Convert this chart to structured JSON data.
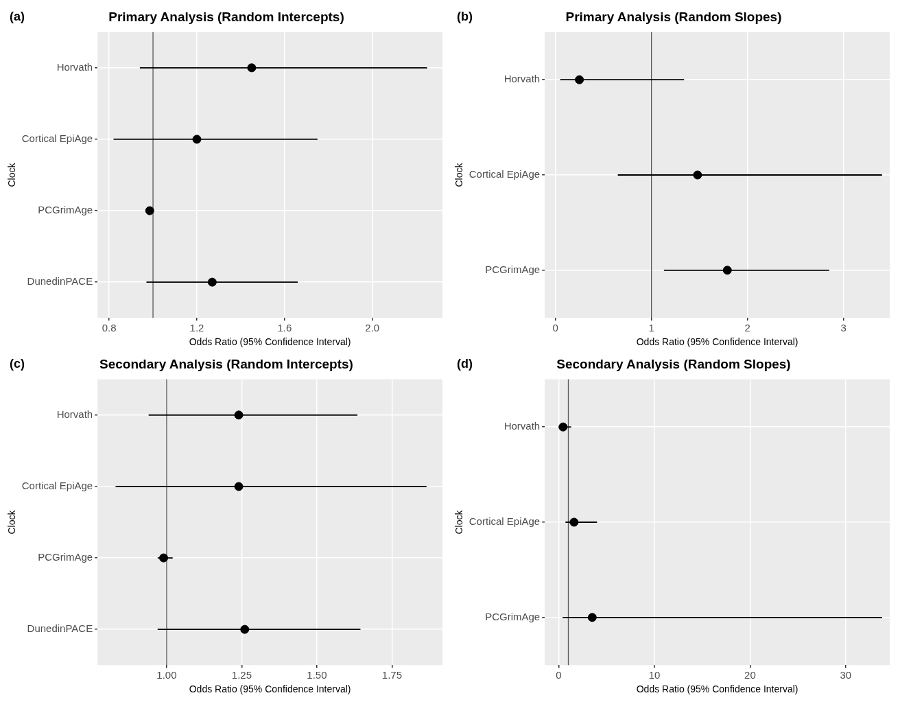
{
  "chart_data": [
    {
      "type": "scatter",
      "orientation": "horizontal",
      "title": "Primary Analysis (Random Intercepts)",
      "xlabel": "Odds Ratio (95% Confidence Interval)",
      "ylabel": "Clock",
      "annotations": [
        "(a)"
      ],
      "categories": [
        "Horvath",
        "Cortical EpiAge",
        "PCGrimAge",
        "DunedinPACE"
      ],
      "values": [
        1.45,
        1.2,
        0.985,
        1.27
      ],
      "errors": [
        [
          0.94,
          2.25
        ],
        [
          0.82,
          1.75
        ],
        [
          0.97,
          1.0
        ],
        [
          0.97,
          1.66
        ]
      ],
      "color": "#000000",
      "marker": "circle",
      "xlim": [
        0.747,
        2.32
      ],
      "xticks": [
        {
          "value": 0.8,
          "label": "0.8"
        },
        {
          "value": 1.2,
          "label": "1.2"
        },
        {
          "value": 1.6,
          "label": "1.6"
        },
        {
          "value": 2.0,
          "label": "2.0"
        }
      ],
      "grid": true,
      "ref_lines": [
        {
          "axis": "x",
          "value": 1,
          "color": "#555555"
        }
      ]
    },
    {
      "type": "scatter",
      "orientation": "horizontal",
      "title": "Primary Analysis (Random Slopes)",
      "xlabel": "Odds Ratio (95% Confidence Interval)",
      "ylabel": "Clock",
      "annotations": [
        "(b)"
      ],
      "categories": [
        "Horvath",
        "Cortical EpiAge",
        "PCGrimAge"
      ],
      "values": [
        0.25,
        1.48,
        1.79
      ],
      "errors": [
        [
          0.05,
          1.34
        ],
        [
          0.65,
          3.4
        ],
        [
          1.13,
          2.85
        ]
      ],
      "color": "#000000",
      "marker": "circle",
      "xlim": [
        -0.11,
        3.48
      ],
      "xticks": [
        0,
        1,
        2,
        3
      ],
      "grid": true,
      "ref_lines": [
        {
          "axis": "x",
          "value": 1,
          "color": "#555555"
        }
      ]
    },
    {
      "type": "scatter",
      "orientation": "horizontal",
      "title": "Secondary Analysis (Random Intercepts)",
      "xlabel": "Odds Ratio (95% Confidence Interval)",
      "ylabel": "Clock",
      "annotations": [
        "(c)"
      ],
      "categories": [
        "Horvath",
        "Cortical EpiAge",
        "PCGrimAge",
        "DunedinPACE"
      ],
      "values": [
        1.24,
        1.24,
        0.99,
        1.26
      ],
      "errors": [
        [
          0.94,
          1.635
        ],
        [
          0.83,
          1.865
        ],
        [
          0.97,
          1.02
        ],
        [
          0.97,
          1.645
        ]
      ],
      "color": "#000000",
      "marker": "circle",
      "xlim": [
        0.77,
        1.918
      ],
      "xticks": [
        {
          "value": 1,
          "label": "1.00"
        },
        {
          "value": 1.25,
          "label": "1.25"
        },
        {
          "value": 1.5,
          "label": "1.50"
        },
        {
          "value": 1.75,
          "label": "1.75"
        }
      ],
      "grid": true,
      "ref_lines": [
        {
          "axis": "x",
          "value": 1,
          "color": "#555555"
        }
      ]
    },
    {
      "type": "scatter",
      "orientation": "horizontal",
      "title": "Secondary Analysis (Random Slopes)",
      "xlabel": "Odds Ratio (95% Confidence Interval)",
      "ylabel": "Clock",
      "annotations": [
        "(d)"
      ],
      "categories": [
        "Horvath",
        "Cortical EpiAge",
        "PCGrimAge"
      ],
      "values": [
        0.45,
        1.6,
        3.5
      ],
      "errors": [
        [
          0.0,
          1.3
        ],
        [
          0.7,
          4.0
        ],
        [
          0.4,
          33.8
        ]
      ],
      "color": "#000000",
      "marker": "circle",
      "xlim": [
        -1.46,
        34.6
      ],
      "xticks": [
        0,
        10,
        20,
        30
      ],
      "grid": true,
      "ref_lines": [
        {
          "axis": "x",
          "value": 1,
          "color": "#555555"
        }
      ]
    }
  ]
}
